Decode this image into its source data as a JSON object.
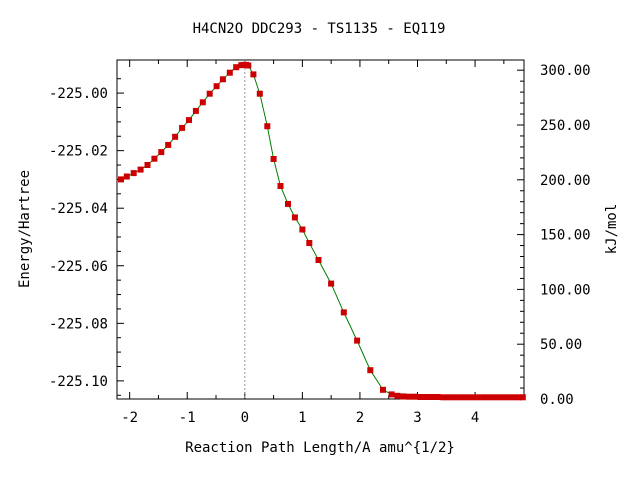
{
  "chart_data": {
    "type": "line",
    "title": "H4CN2O   DDC293 - TS1135 - EQ119",
    "xlabel": "Reaction Path Length/A amu^{1/2}",
    "ylabel": "Energy/Hartree",
    "y2label": "kJ/mol",
    "xlim": [
      -2.22,
      4.85
    ],
    "ylim": [
      -225.1063,
      -224.9885
    ],
    "y2lim": [
      0,
      309.3
    ],
    "x_ticks": [
      -2,
      -1,
      0,
      1,
      2,
      3,
      4
    ],
    "x_tick_labels": [
      "-2",
      "-1",
      "0",
      "1",
      "2",
      "3",
      "4"
    ],
    "y_ticks": [
      -225.0,
      -225.02,
      -225.04,
      -225.06,
      -225.08,
      -225.1
    ],
    "y_tick_labels": [
      "-225.00",
      "-225.02",
      "-225.04",
      "-225.06",
      "-225.08",
      "-225.10"
    ],
    "y2_ticks": [
      0,
      50,
      100,
      150,
      200,
      250,
      300
    ],
    "y2_tick_labels": [
      "0.00",
      "50.00",
      "100.00",
      "150.00",
      "200.00",
      "250.00",
      "300.00"
    ],
    "ts_marker_x": 0,
    "grid": false,
    "series": [
      {
        "color": "#008000",
        "marker_color": "#cc0000",
        "x": [
          -2.15,
          -2.05,
          -1.93,
          -1.81,
          -1.69,
          -1.57,
          -1.45,
          -1.33,
          -1.21,
          -1.09,
          -0.97,
          -0.85,
          -0.73,
          -0.61,
          -0.49,
          -0.38,
          -0.26,
          -0.15,
          -0.06,
          -0.02,
          0.02,
          0.06,
          0.15,
          0.26,
          0.39,
          0.5,
          0.62,
          0.75,
          0.87,
          1.0,
          1.12,
          1.28,
          1.5,
          1.72,
          1.95,
          2.18,
          2.4,
          2.55,
          2.65,
          2.75,
          2.85,
          2.95,
          3.05,
          3.15,
          3.25,
          3.35,
          3.45,
          3.55,
          3.65,
          3.75,
          3.85,
          3.95,
          4.05,
          4.15,
          4.25,
          4.35,
          4.45,
          4.55,
          4.65,
          4.75,
          4.83
        ],
        "y": [
          -225.03,
          -225.029,
          -225.0278,
          -225.0266,
          -225.025,
          -225.0228,
          -225.0205,
          -225.018,
          -225.0152,
          -225.0121,
          -225.0094,
          -225.0062,
          -225.0032,
          -225.0002,
          -224.9976,
          -224.9952,
          -224.9929,
          -224.991,
          -224.9903,
          -224.9902,
          -224.9902,
          -224.9904,
          -224.9935,
          -225.0002,
          -225.0115,
          -225.0229,
          -225.0323,
          -225.0385,
          -225.0432,
          -225.0474,
          -225.0521,
          -225.058,
          -225.0662,
          -225.0762,
          -225.086,
          -225.0963,
          -225.1031,
          -225.1047,
          -225.1052,
          -225.1054,
          -225.1055,
          -225.1055,
          -225.1056,
          -225.1056,
          -225.1056,
          -225.1056,
          -225.1057,
          -225.1057,
          -225.1057,
          -225.1057,
          -225.1057,
          -225.1057,
          -225.1057,
          -225.1057,
          -225.1057,
          -225.1057,
          -225.1057,
          -225.1057,
          -225.1057,
          -225.1057,
          -225.1057
        ]
      }
    ]
  }
}
